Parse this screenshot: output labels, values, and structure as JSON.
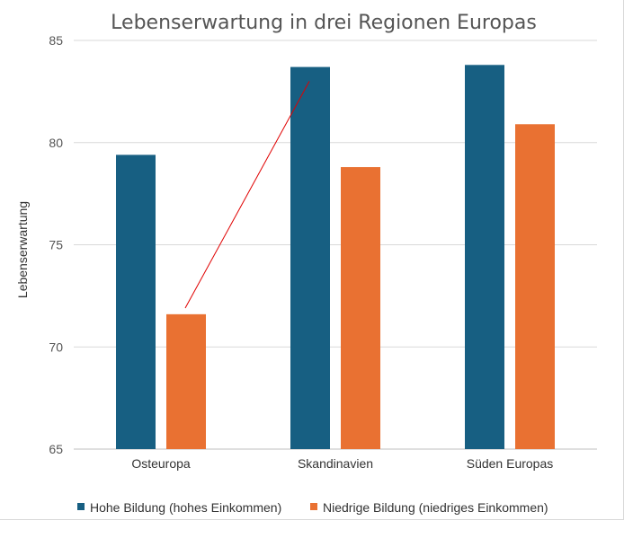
{
  "chart_data": {
    "type": "bar",
    "title": "Lebenserwartung in drei Regionen Europas",
    "xlabel": "",
    "ylabel": "Lebenserwartung",
    "categories": [
      "Osteuropa",
      "Skandinavien",
      "Süden Europas"
    ],
    "series": [
      {
        "name": "Hohe Bildung (hohes Einkommen)",
        "color": "#175f82",
        "values": [
          79.4,
          83.7,
          83.8
        ]
      },
      {
        "name": "Niedrige Bildung (niedriges Einkommen)",
        "color": "#e97132",
        "values": [
          71.6,
          78.8,
          80.9
        ]
      }
    ],
    "ylim": [
      65,
      85
    ],
    "yticks": [
      65,
      70,
      75,
      80,
      85
    ],
    "grid": true,
    "legend": "bottom",
    "annotations": [
      {
        "type": "line",
        "color": "#e00000",
        "from": {
          "category": "Osteuropa",
          "y": 71.9
        },
        "to": {
          "category": "Skandinavien",
          "y": 83.0
        }
      }
    ]
  }
}
